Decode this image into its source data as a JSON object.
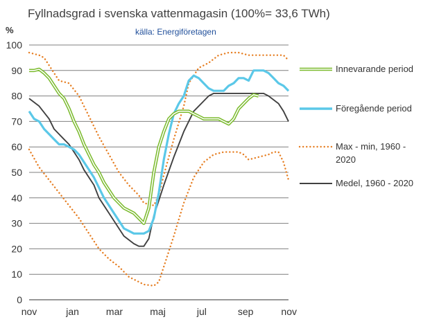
{
  "chart_data": {
    "type": "line",
    "title": "Fyllnadsgrad i svenska vattenmagasin (100%= 33,6 TWh)",
    "subtitle": "källa: Energiföretagen",
    "ylabel": "%",
    "xlabel": "",
    "ylim": [
      0,
      100
    ],
    "yticks": [
      0,
      10,
      20,
      30,
      40,
      50,
      60,
      70,
      80,
      90,
      100
    ],
    "xlim": [
      0,
      52
    ],
    "xticks": [
      {
        "pos": 0,
        "label": "nov"
      },
      {
        "pos": 8.7,
        "label": "jan"
      },
      {
        "pos": 17.1,
        "label": "mar"
      },
      {
        "pos": 25.8,
        "label": "maj"
      },
      {
        "pos": 34.6,
        "label": "jul"
      },
      {
        "pos": 43.4,
        "label": "sep"
      },
      {
        "pos": 52.1,
        "label": "nov"
      }
    ],
    "grid": "horizontal",
    "legend_position": "right",
    "series": [
      {
        "name": "Max - min, 1960 - 2020",
        "style": "dotted",
        "color": "#e67e22",
        "lines": [
          [
            [
              0,
              97
            ],
            [
              2,
              96
            ],
            [
              3,
              95
            ],
            [
              5,
              89
            ],
            [
              6,
              86
            ],
            [
              8,
              85
            ],
            [
              10,
              80
            ],
            [
              12,
              72
            ],
            [
              14,
              64
            ],
            [
              16,
              57
            ],
            [
              18,
              50
            ],
            [
              20,
              45
            ],
            [
              22,
              41
            ],
            [
              23,
              38
            ],
            [
              25,
              37
            ],
            [
              26,
              41
            ],
            [
              27,
              49
            ],
            [
              29,
              63
            ],
            [
              31,
              76
            ],
            [
              32,
              85
            ],
            [
              34,
              91
            ],
            [
              36,
              93
            ],
            [
              38,
              96
            ],
            [
              40,
              97
            ],
            [
              42,
              97
            ],
            [
              44,
              96
            ],
            [
              46,
              96
            ],
            [
              48,
              96
            ],
            [
              50,
              96
            ],
            [
              51,
              96
            ],
            [
              52,
              94
            ]
          ],
          [
            [
              0,
              59
            ],
            [
              2,
              52
            ],
            [
              4,
              47
            ],
            [
              6,
              42
            ],
            [
              8,
              37
            ],
            [
              10,
              32
            ],
            [
              12,
              26
            ],
            [
              14,
              20
            ],
            [
              16,
              16
            ],
            [
              18,
              13
            ],
            [
              20,
              9
            ],
            [
              22,
              7
            ],
            [
              23,
              6
            ],
            [
              25,
              5.5
            ],
            [
              26,
              7
            ],
            [
              27,
              13
            ],
            [
              29,
              25
            ],
            [
              31,
              38
            ],
            [
              33,
              48
            ],
            [
              35,
              54
            ],
            [
              37,
              57
            ],
            [
              39,
              58
            ],
            [
              41,
              58
            ],
            [
              42,
              58
            ],
            [
              43,
              57
            ],
            [
              44,
              55
            ],
            [
              46,
              56
            ],
            [
              48,
              57
            ],
            [
              49,
              58
            ],
            [
              50,
              58
            ],
            [
              51,
              54
            ],
            [
              52,
              47
            ]
          ]
        ]
      },
      {
        "name": "Medel, 1960 - 2020",
        "style": "solid",
        "color": "#404040",
        "values": [
          [
            0,
            79
          ],
          [
            2,
            76
          ],
          [
            4,
            71
          ],
          [
            5,
            67
          ],
          [
            7,
            63
          ],
          [
            8,
            61
          ],
          [
            10,
            55
          ],
          [
            11,
            51
          ],
          [
            13,
            45
          ],
          [
            14,
            40
          ],
          [
            16,
            34
          ],
          [
            18,
            28
          ],
          [
            19,
            25
          ],
          [
            21,
            22
          ],
          [
            22,
            21
          ],
          [
            23,
            21
          ],
          [
            24,
            24
          ],
          [
            25,
            33
          ],
          [
            27,
            45
          ],
          [
            29,
            56
          ],
          [
            31,
            66
          ],
          [
            33,
            74
          ],
          [
            35,
            78
          ],
          [
            36,
            80
          ],
          [
            37,
            81
          ],
          [
            39,
            81
          ],
          [
            41,
            81
          ],
          [
            43,
            81
          ],
          [
            45,
            81
          ],
          [
            47,
            81
          ],
          [
            48,
            80
          ],
          [
            50,
            77
          ],
          [
            51,
            74
          ],
          [
            52,
            70
          ]
        ]
      },
      {
        "name": "Föregående period",
        "style": "solid",
        "color": "#5bc8e8",
        "values": [
          [
            0,
            74
          ],
          [
            1,
            71
          ],
          [
            2,
            70
          ],
          [
            3,
            67
          ],
          [
            4,
            65
          ],
          [
            5,
            63
          ],
          [
            6,
            61
          ],
          [
            7,
            61
          ],
          [
            8,
            60
          ],
          [
            9,
            59
          ],
          [
            10,
            57
          ],
          [
            11,
            54
          ],
          [
            12,
            51
          ],
          [
            13,
            48
          ],
          [
            14,
            44
          ],
          [
            15,
            40
          ],
          [
            16,
            37
          ],
          [
            17,
            34
          ],
          [
            18,
            31
          ],
          [
            19,
            28
          ],
          [
            20,
            27
          ],
          [
            21,
            26
          ],
          [
            22,
            26
          ],
          [
            23,
            26
          ],
          [
            24,
            27
          ],
          [
            25,
            32
          ],
          [
            26,
            42
          ],
          [
            27,
            55
          ],
          [
            28,
            65
          ],
          [
            29,
            73
          ],
          [
            30,
            77
          ],
          [
            31,
            80
          ],
          [
            32,
            86
          ],
          [
            33,
            88
          ],
          [
            34,
            87
          ],
          [
            35,
            85
          ],
          [
            36,
            83
          ],
          [
            37,
            82
          ],
          [
            38,
            82
          ],
          [
            39,
            82
          ],
          [
            40,
            84
          ],
          [
            41,
            85
          ],
          [
            42,
            87
          ],
          [
            43,
            87
          ],
          [
            44,
            86
          ],
          [
            45,
            90
          ],
          [
            46,
            90
          ],
          [
            47,
            90
          ],
          [
            48,
            89
          ],
          [
            49,
            87
          ],
          [
            50,
            85
          ],
          [
            51,
            84
          ],
          [
            52,
            82
          ]
        ]
      },
      {
        "name": "Innevarande period",
        "style": "double",
        "color": "#7aba2c",
        "values": [
          [
            0,
            90
          ],
          [
            1,
            90
          ],
          [
            2,
            90.5
          ],
          [
            3,
            89
          ],
          [
            4,
            87
          ],
          [
            5,
            84
          ],
          [
            6,
            81
          ],
          [
            7,
            79
          ],
          [
            8,
            75
          ],
          [
            9,
            70
          ],
          [
            10,
            66
          ],
          [
            11,
            61
          ],
          [
            12,
            57
          ],
          [
            13,
            53
          ],
          [
            14,
            50
          ],
          [
            15,
            46
          ],
          [
            16,
            43
          ],
          [
            17,
            40
          ],
          [
            18,
            38
          ],
          [
            19,
            36
          ],
          [
            20,
            35
          ],
          [
            21,
            34
          ],
          [
            22,
            32
          ],
          [
            23,
            30
          ],
          [
            24,
            36
          ],
          [
            25,
            50
          ],
          [
            26,
            60
          ],
          [
            27,
            66
          ],
          [
            28,
            71
          ],
          [
            29,
            73
          ],
          [
            30,
            74
          ],
          [
            31,
            74
          ],
          [
            32,
            74
          ],
          [
            33,
            73
          ],
          [
            34,
            72
          ],
          [
            35,
            71
          ],
          [
            36,
            71
          ],
          [
            37,
            71
          ],
          [
            38,
            71
          ],
          [
            39,
            70
          ],
          [
            40,
            69
          ],
          [
            41,
            71
          ],
          [
            42,
            75
          ],
          [
            43,
            77
          ],
          [
            44,
            79
          ],
          [
            45,
            80.5
          ],
          [
            46,
            80
          ]
        ]
      }
    ]
  }
}
